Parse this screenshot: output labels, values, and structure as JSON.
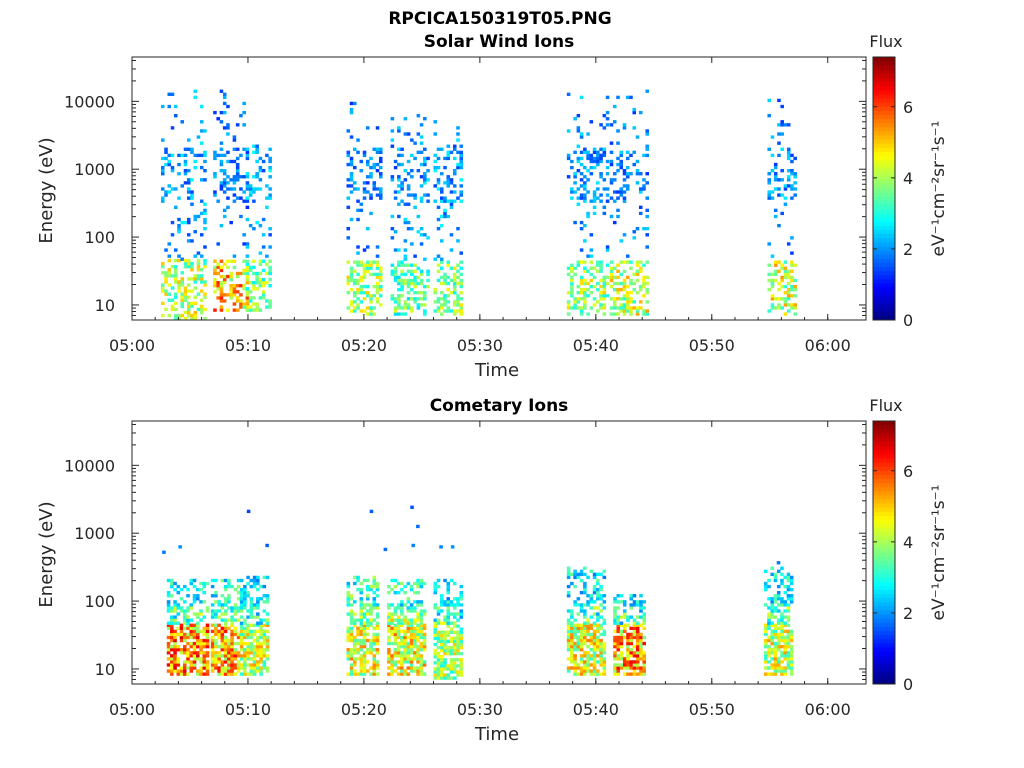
{
  "figure_title": "RPCICA150319T05.PNG",
  "colorbar_label": "Flux",
  "colorbar_unit": "eV⁻¹cm⁻²sr⁻¹s⁻¹",
  "chart_data": [
    {
      "type": "heatmap",
      "title": "Solar Wind Ions",
      "xlabel": "Time",
      "ylabel": "Energy (eV)",
      "x_ticks": [
        "05:00",
        "05:10",
        "05:20",
        "05:30",
        "05:40",
        "05:50",
        "06:00"
      ],
      "xlim_minutes": [
        0,
        63.3
      ],
      "y_scale": "log",
      "y_ticks": [
        "10",
        "100",
        "1000",
        "10000"
      ],
      "ylim": [
        6,
        45000
      ],
      "colorbar": {
        "label": "Flux",
        "unit": "eV⁻¹cm⁻²sr⁻¹s⁻¹",
        "ticks": [
          "0",
          "2",
          "4",
          "6"
        ],
        "range": [
          0,
          7.4
        ],
        "colormap": "jet"
      },
      "clusters": [
        {
          "t_start": 2.5,
          "t_end": 6.2,
          "e_low": 6,
          "e_high": 14000,
          "low_band_flux": 5.2,
          "high_band_flux": 2.3
        },
        {
          "t_start": 7.0,
          "t_end": 9.8,
          "e_low": 8,
          "e_high": 15000,
          "low_band_flux": 6.3,
          "high_band_flux": 2.0
        },
        {
          "t_start": 9.8,
          "t_end": 12.0,
          "e_low": 8,
          "e_high": 3000,
          "low_band_flux": 4.6,
          "high_band_flux": 2.4
        },
        {
          "t_start": 18.5,
          "t_end": 21.5,
          "e_low": 7,
          "e_high": 9000,
          "low_band_flux": 5.0,
          "high_band_flux": 2.0
        },
        {
          "t_start": 22.3,
          "t_end": 25.5,
          "e_low": 7,
          "e_high": 6000,
          "low_band_flux": 4.5,
          "high_band_flux": 2.2
        },
        {
          "t_start": 26.0,
          "t_end": 28.4,
          "e_low": 7,
          "e_high": 5000,
          "low_band_flux": 4.8,
          "high_band_flux": 2.3
        },
        {
          "t_start": 37.5,
          "t_end": 41.0,
          "e_low": 7,
          "e_high": 14000,
          "low_band_flux": 5.0,
          "high_band_flux": 2.2
        },
        {
          "t_start": 41.2,
          "t_end": 44.5,
          "e_low": 7,
          "e_high": 15000,
          "low_band_flux": 5.3,
          "high_band_flux": 2.1
        },
        {
          "t_start": 54.8,
          "t_end": 57.2,
          "e_low": 7,
          "e_high": 11000,
          "low_band_flux": 5.4,
          "high_band_flux": 2.2
        }
      ]
    },
    {
      "type": "heatmap",
      "title": "Cometary Ions",
      "xlabel": "Time",
      "ylabel": "Energy (eV)",
      "x_ticks": [
        "05:00",
        "05:10",
        "05:20",
        "05:30",
        "05:40",
        "05:50",
        "06:00"
      ],
      "xlim_minutes": [
        0,
        63.3
      ],
      "y_scale": "log",
      "y_ticks": [
        "10",
        "100",
        "1000",
        "10000"
      ],
      "ylim": [
        6,
        45000
      ],
      "colorbar": {
        "label": "Flux",
        "unit": "eV⁻¹cm⁻²sr⁻¹s⁻¹",
        "ticks": [
          "0",
          "2",
          "4",
          "6"
        ],
        "range": [
          0,
          7.4
        ],
        "colormap": "jet"
      },
      "clusters": [
        {
          "t_start": 3.0,
          "t_end": 6.5,
          "e_low": 8,
          "e_high": 200,
          "low_band_flux": 6.8,
          "high_band_flux": 3.0
        },
        {
          "t_start": 6.8,
          "t_end": 9.3,
          "e_low": 8,
          "e_high": 200,
          "low_band_flux": 6.5,
          "high_band_flux": 3.3
        },
        {
          "t_start": 9.3,
          "t_end": 11.8,
          "e_low": 8,
          "e_high": 230,
          "low_band_flux": 5.5,
          "high_band_flux": 2.9
        },
        {
          "t_start": 18.5,
          "t_end": 21.3,
          "e_low": 8,
          "e_high": 220,
          "low_band_flux": 5.6,
          "high_band_flux": 3.5
        },
        {
          "t_start": 22.0,
          "t_end": 25.3,
          "e_low": 8,
          "e_high": 200,
          "low_band_flux": 5.8,
          "high_band_flux": 3.4
        },
        {
          "t_start": 26.0,
          "t_end": 28.5,
          "e_low": 7,
          "e_high": 200,
          "low_band_flux": 5.1,
          "high_band_flux": 3.0
        },
        {
          "t_start": 37.5,
          "t_end": 40.8,
          "e_low": 8,
          "e_high": 300,
          "low_band_flux": 5.6,
          "high_band_flux": 3.0
        },
        {
          "t_start": 41.5,
          "t_end": 44.3,
          "e_low": 8,
          "e_high": 120,
          "low_band_flux": 6.6,
          "high_band_flux": 3.0
        },
        {
          "t_start": 54.5,
          "t_end": 57.0,
          "e_low": 8,
          "e_high": 300,
          "low_band_flux": 5.4,
          "high_band_flux": 3.0
        }
      ],
      "sparse_high_energy_points": [
        {
          "t": 2.6,
          "e": 500,
          "flux": 1.8
        },
        {
          "t": 4.0,
          "e": 600,
          "flux": 2.0
        },
        {
          "t": 9.9,
          "e": 2000,
          "flux": 1.4
        },
        {
          "t": 11.5,
          "e": 630,
          "flux": 1.6
        },
        {
          "t": 20.5,
          "e": 2000,
          "flux": 1.6
        },
        {
          "t": 21.7,
          "e": 550,
          "flux": 1.7
        },
        {
          "t": 24.0,
          "e": 2300,
          "flux": 1.5
        },
        {
          "t": 24.5,
          "e": 1200,
          "flux": 1.7
        },
        {
          "t": 24.1,
          "e": 630,
          "flux": 1.9
        },
        {
          "t": 26.5,
          "e": 600,
          "flux": 1.9
        },
        {
          "t": 27.5,
          "e": 600,
          "flux": 2.0
        },
        {
          "t": 55.6,
          "e": 350,
          "flux": 1.8
        }
      ]
    }
  ]
}
